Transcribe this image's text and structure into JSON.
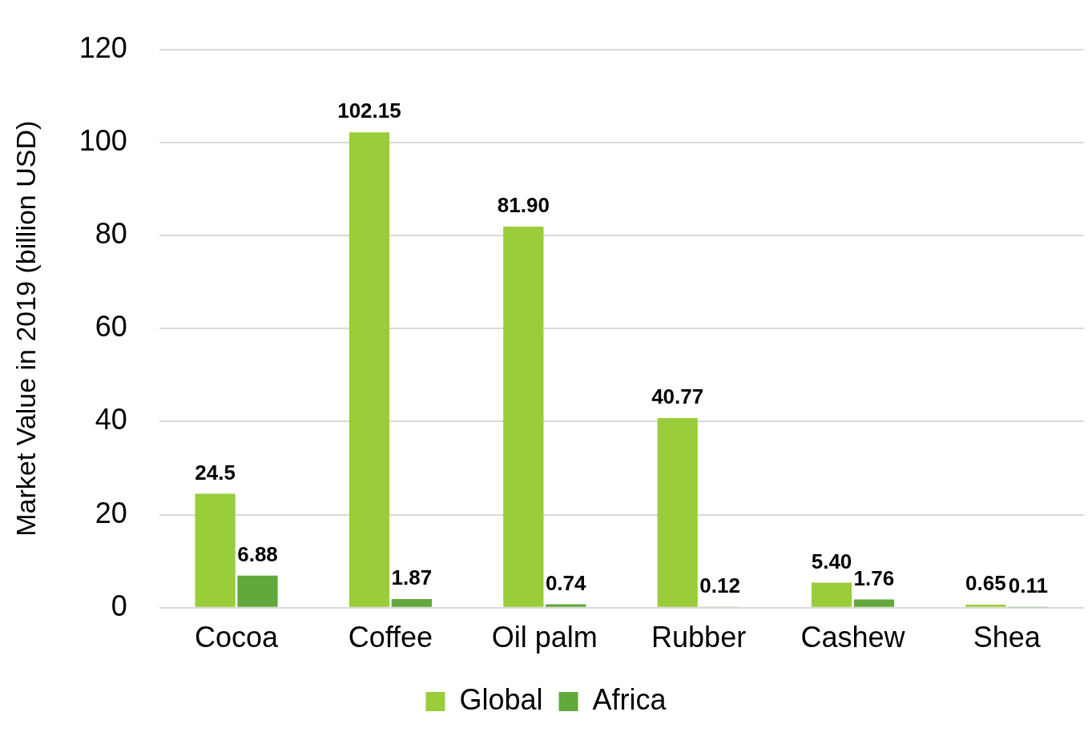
{
  "chart_data": {
    "type": "bar",
    "ylabel": "Market Value in 2019 (billion USD)",
    "categories": [
      "Cocoa",
      "Coffee",
      "Oil palm",
      "Rubber",
      "Cashew",
      "Shea"
    ],
    "series": [
      {
        "name": "Global",
        "color": "#9acd3a",
        "values": [
          24.5,
          102.15,
          81.9,
          40.77,
          5.4,
          0.65
        ],
        "value_labels": [
          "24.5",
          "102.15",
          "81.90",
          "40.77",
          "5.40",
          "0.65"
        ]
      },
      {
        "name": "Africa",
        "color": "#63a83b",
        "values": [
          6.88,
          1.87,
          0.74,
          0.12,
          1.76,
          0.11
        ],
        "value_labels": [
          "6.88",
          "1.87",
          "0.74",
          "0.12",
          "1.76",
          "0.11"
        ]
      }
    ],
    "ylim": [
      0,
      120
    ],
    "yticks": [
      0,
      20,
      40,
      60,
      80,
      100,
      120
    ],
    "grid": "y",
    "legend": "bottom"
  }
}
